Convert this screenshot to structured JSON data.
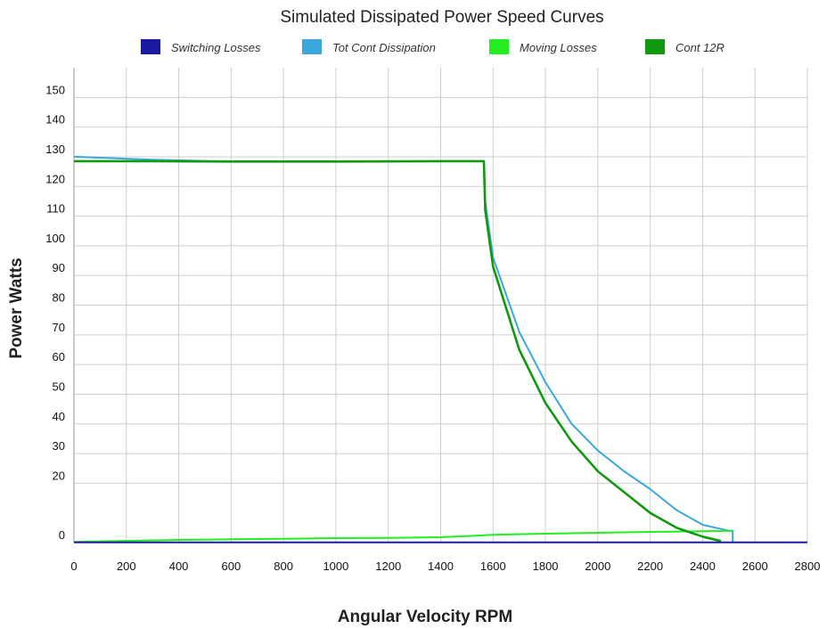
{
  "chart_data": {
    "type": "line",
    "title": "Simulated Dissipated Power Speed Curves",
    "xlabel": "Angular Velocity RPM",
    "ylabel": "Power Watts",
    "xlim": [
      0,
      2800
    ],
    "ylim": [
      0,
      160
    ],
    "x_ticks": [
      0,
      200,
      400,
      600,
      800,
      1000,
      1200,
      1400,
      1600,
      1800,
      2000,
      2200,
      2400,
      2600,
      2800
    ],
    "y_ticks": [
      0,
      20,
      30,
      40,
      50,
      60,
      70,
      80,
      90,
      100,
      110,
      120,
      130,
      140,
      150
    ],
    "grid": true,
    "legend_position": "top",
    "series": [
      {
        "name": "Switching Losses",
        "color": "#1a1aa0",
        "x": [
          0,
          500,
          1000,
          1500,
          2000,
          2500,
          2800
        ],
        "y": [
          0.1,
          0.1,
          0.1,
          0.1,
          0.1,
          0.1,
          0.1
        ]
      },
      {
        "name": "Tot Cont Dissipation",
        "color": "#3aa8dc",
        "x": [
          0,
          300,
          600,
          1000,
          1400,
          1565,
          1570,
          1600,
          1700,
          1800,
          1900,
          2000,
          2100,
          2200,
          2300,
          2400,
          2500,
          2515,
          2515
        ],
        "y": [
          130,
          129,
          128.4,
          128.4,
          128.5,
          128.5,
          115,
          96,
          71,
          54,
          40,
          31,
          24,
          18,
          11,
          6,
          4,
          4,
          0
        ]
      },
      {
        "name": "Moving Losses",
        "color": "#22ee22",
        "x": [
          0,
          200,
          400,
          600,
          800,
          1000,
          1200,
          1400,
          1500,
          1600,
          1800,
          2000,
          2200,
          2400,
          2515
        ],
        "y": [
          0.2,
          0.6,
          0.9,
          1.1,
          1.3,
          1.5,
          1.6,
          1.8,
          2.2,
          2.6,
          3.0,
          3.3,
          3.6,
          3.8,
          4.0
        ]
      },
      {
        "name": "Cont 12R",
        "color": "#109a10",
        "x": [
          0,
          300,
          600,
          1000,
          1400,
          1565,
          1570,
          1600,
          1700,
          1800,
          1900,
          2000,
          2100,
          2200,
          2300,
          2400,
          2470
        ],
        "y": [
          128.5,
          128.5,
          128.4,
          128.4,
          128.5,
          128.5,
          112,
          93,
          65,
          47,
          34,
          24,
          17,
          10,
          5,
          2,
          0.5
        ]
      }
    ]
  }
}
